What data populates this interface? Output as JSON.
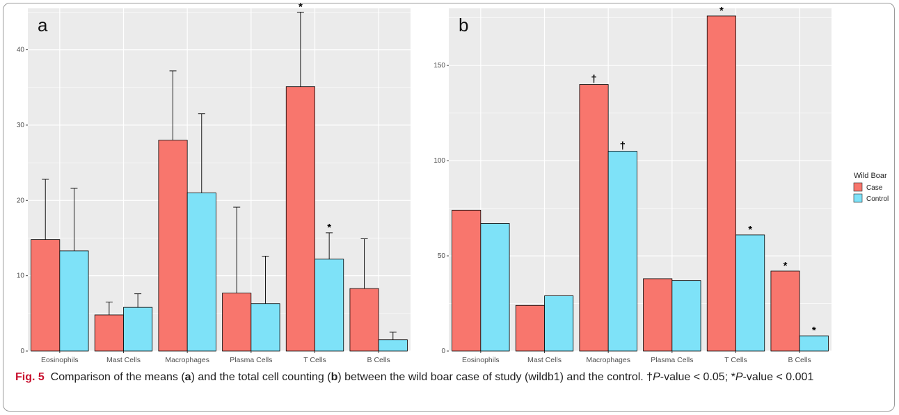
{
  "chart_data": [
    {
      "panel_label": "a",
      "type": "bar",
      "categories": [
        "Eosinophils",
        "Mast Cells",
        "Macrophages",
        "Plasma Cells",
        "T Cells",
        "B Cells"
      ],
      "series": [
        {
          "name": "Case",
          "values": [
            14.8,
            4.8,
            28.0,
            7.7,
            35.1,
            8.3
          ],
          "error": [
            8.0,
            1.7,
            9.2,
            11.4,
            9.9,
            6.6
          ],
          "markers": [
            "",
            "",
            "",
            "",
            "*",
            ""
          ]
        },
        {
          "name": "Control",
          "values": [
            13.3,
            5.8,
            21.0,
            6.3,
            12.2,
            1.5
          ],
          "error": [
            8.3,
            1.8,
            10.5,
            6.3,
            3.5,
            1.0
          ],
          "markers": [
            "",
            "",
            "",
            "",
            "*",
            ""
          ]
        }
      ],
      "ylim": [
        0,
        45.5
      ],
      "yticks": [
        0,
        10,
        20,
        30,
        40
      ],
      "grid": true
    },
    {
      "panel_label": "b",
      "type": "bar",
      "categories": [
        "Eosinophils",
        "Mast Cells",
        "Macrophages",
        "Plasma Cells",
        "T Cells",
        "B Cells"
      ],
      "series": [
        {
          "name": "Case",
          "values": [
            74,
            24,
            140,
            38,
            176,
            42
          ],
          "markers": [
            "",
            "",
            "†",
            "",
            "*",
            "*"
          ]
        },
        {
          "name": "Control",
          "values": [
            67,
            29,
            105,
            37,
            61,
            8
          ],
          "markers": [
            "",
            "",
            "†",
            "",
            "*",
            "*"
          ]
        }
      ],
      "ylim": [
        0,
        180
      ],
      "yticks": [
        0,
        50,
        100,
        150
      ],
      "grid": true
    }
  ],
  "legend": {
    "title": "Wild Boar",
    "items": [
      {
        "label": "Case",
        "color": "#F8766D"
      },
      {
        "label": "Control",
        "color": "#7EE2F8"
      }
    ],
    "position": "right"
  },
  "colors": {
    "case": "#F8766D",
    "control": "#7EE2F8",
    "panel_bg": "#EBEBEB",
    "grid": "#ffffff",
    "accent": "#c8102e"
  },
  "caption": {
    "fig_label": "Fig. 5",
    "t1": "Comparison of the means (",
    "a": "a",
    "t2": ") and the total cell counting (",
    "b": "b",
    "t3": ") between the wild boar case of study (wildb1) and the control. †",
    "p1": "P",
    "t4": "-value < 0.05; *",
    "p2": "P",
    "t5": "-value < 0.001"
  }
}
